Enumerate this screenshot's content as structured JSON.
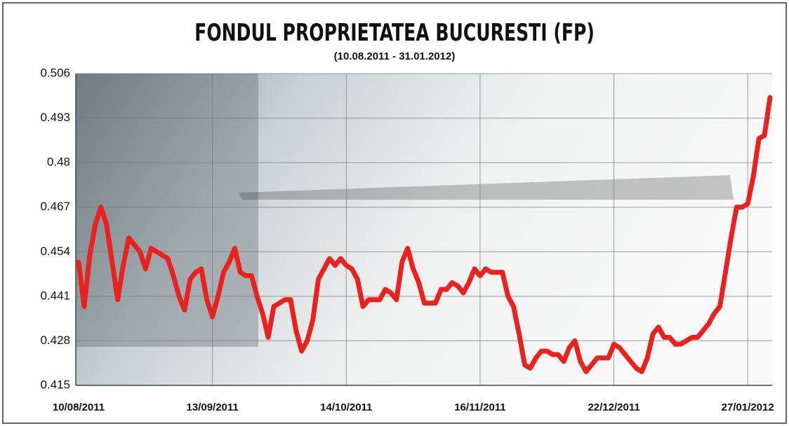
{
  "chart_data": {
    "type": "line",
    "title": "FONDUL PROPRIETATEA BUCURESTI (FP)",
    "subtitle": "(10.08.2011 - 31.01.2012)",
    "categories": [
      "10/08/2011",
      null,
      null,
      null,
      null,
      null,
      null,
      null,
      null,
      null,
      null,
      null,
      null,
      null,
      null,
      null,
      null,
      null,
      null,
      null,
      null,
      null,
      null,
      null,
      "13/09/2011",
      null,
      null,
      null,
      null,
      null,
      null,
      null,
      null,
      null,
      null,
      null,
      null,
      null,
      null,
      null,
      null,
      null,
      null,
      null,
      null,
      null,
      null,
      null,
      "14/10/2011",
      null,
      null,
      null,
      null,
      null,
      null,
      null,
      null,
      null,
      null,
      null,
      null,
      null,
      null,
      null,
      null,
      null,
      null,
      null,
      null,
      null,
      null,
      null,
      "16/11/2011",
      null,
      null,
      null,
      null,
      null,
      null,
      null,
      null,
      null,
      null,
      null,
      null,
      null,
      null,
      null,
      null,
      null,
      null,
      null,
      null,
      null,
      null,
      null,
      "22/12/2011",
      null,
      null,
      null,
      null,
      null,
      null,
      null,
      null,
      null,
      null,
      null,
      null,
      null,
      null,
      null,
      null,
      null,
      null,
      null,
      null,
      null,
      null,
      null,
      "27/01/2012",
      null,
      null,
      null,
      null
    ],
    "series": [
      {
        "color": "#e8231f",
        "values": [
          0.451,
          0.438,
          0.453,
          0.462,
          0.467,
          0.462,
          0.451,
          0.44,
          0.45,
          0.458,
          0.456,
          0.454,
          0.449,
          0.455,
          0.454,
          0.453,
          0.452,
          0.447,
          0.441,
          0.437,
          0.446,
          0.448,
          0.449,
          0.44,
          0.435,
          0.441,
          0.448,
          0.451,
          0.455,
          0.448,
          0.447,
          0.447,
          0.441,
          0.436,
          0.429,
          0.438,
          0.439,
          0.44,
          0.44,
          0.431,
          0.425,
          0.428,
          0.434,
          0.446,
          0.449,
          0.452,
          0.45,
          0.452,
          0.45,
          0.449,
          0.446,
          0.438,
          0.44,
          0.44,
          0.44,
          0.443,
          0.442,
          0.44,
          0.451,
          0.455,
          0.449,
          0.445,
          0.439,
          0.439,
          0.439,
          0.443,
          0.443,
          0.445,
          0.444,
          0.442,
          0.445,
          0.449,
          0.447,
          0.449,
          0.448,
          0.448,
          0.448,
          0.441,
          0.438,
          0.43,
          0.421,
          0.42,
          0.423,
          0.425,
          0.425,
          0.424,
          0.424,
          0.422,
          0.426,
          0.428,
          0.422,
          0.419,
          0.421,
          0.423,
          0.423,
          0.423,
          0.427,
          0.426,
          0.424,
          0.422,
          0.42,
          0.419,
          0.423,
          0.43,
          0.432,
          0.429,
          0.429,
          0.427,
          0.427,
          0.428,
          0.429,
          0.429,
          0.431,
          0.433,
          0.436,
          0.438,
          0.448,
          0.458,
          0.467,
          0.467,
          0.468,
          0.476,
          0.487,
          0.488,
          0.499
        ]
      }
    ],
    "ylim": [
      0.415,
      0.506
    ],
    "yticks": [
      0.415,
      0.428,
      0.441,
      0.454,
      0.467,
      0.48,
      0.493,
      0.506
    ],
    "grid": true
  }
}
